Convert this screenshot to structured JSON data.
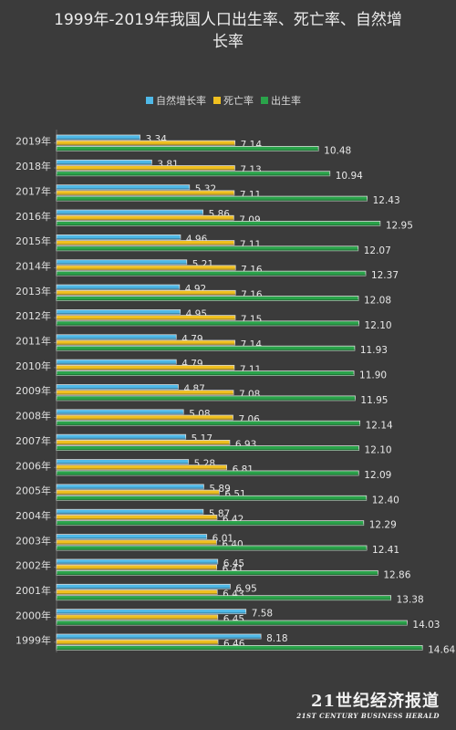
{
  "chart_data": {
    "type": "bar",
    "orientation": "horizontal",
    "title": "1999年-2019年我国人口出生率、死亡率、自然增长率",
    "title_lines": [
      "1999年-2019年我国人口出生率、死亡率、自然增",
      "长率"
    ],
    "xlabel": "",
    "ylabel": "",
    "xlim": [
      0,
      15
    ],
    "grid": false,
    "legend_position": "top",
    "categories": [
      "2019年",
      "2018年",
      "2017年",
      "2016年",
      "2015年",
      "2014年",
      "2013年",
      "2012年",
      "2011年",
      "2010年",
      "2009年",
      "2008年",
      "2007年",
      "2006年",
      "2005年",
      "2004年",
      "2003年",
      "2002年",
      "2001年",
      "2000年",
      "1999年"
    ],
    "series": [
      {
        "name": "自然增长率",
        "color": "#4fb9e8",
        "values": [
          3.34,
          3.81,
          5.32,
          5.86,
          4.96,
          5.21,
          4.92,
          4.95,
          4.79,
          4.79,
          4.87,
          5.08,
          5.17,
          5.28,
          5.89,
          5.87,
          6.01,
          6.45,
          6.95,
          7.58,
          8.18
        ],
        "labels": [
          "3.34",
          "3.81",
          "5.32",
          "5.86",
          "4.96",
          "5.21",
          "4.92",
          "4.95",
          "4.79",
          "4.79",
          "4.87",
          "5.08",
          "5.17",
          "5.28",
          "5.89",
          "5.87",
          "6.01",
          "6.45",
          "6.95",
          "7.58",
          "8.18"
        ]
      },
      {
        "name": "死亡率",
        "color": "#f0c020",
        "values": [
          7.14,
          7.13,
          7.11,
          7.09,
          7.11,
          7.16,
          7.16,
          7.15,
          7.14,
          7.11,
          7.08,
          7.06,
          6.93,
          6.81,
          6.51,
          6.42,
          6.4,
          6.41,
          6.43,
          6.45,
          6.46
        ],
        "labels": [
          "7.14",
          "7.13",
          "7.11",
          "7.09",
          "7.11",
          "7.16",
          "7.16",
          "7.15",
          "7.14",
          "7.11",
          "7.08",
          "7.06",
          "6.93",
          "6.81",
          "6.51",
          "6.42",
          "6.40",
          "6.41",
          "6.43",
          "6.45",
          "6.46"
        ]
      },
      {
        "name": "出生率",
        "color": "#2aa34a",
        "values": [
          10.48,
          10.94,
          12.43,
          12.95,
          12.07,
          12.37,
          12.08,
          12.1,
          11.93,
          11.9,
          11.95,
          12.14,
          12.1,
          12.09,
          12.4,
          12.29,
          12.41,
          12.86,
          13.38,
          14.03,
          14.64
        ],
        "labels": [
          "10.48",
          "10.94",
          "12.43",
          "12.95",
          "12.07",
          "12.37",
          "12.08",
          "12.10",
          "11.93",
          "11.90",
          "11.95",
          "12.14",
          "12.10",
          "12.09",
          "12.40",
          "12.29",
          "12.41",
          "12.86",
          "13.38",
          "14.03",
          "14.64"
        ]
      }
    ]
  },
  "watermark": {
    "main": "21世纪经济报道",
    "sub": "21ST CENTURY BUSINESS HERALD"
  }
}
